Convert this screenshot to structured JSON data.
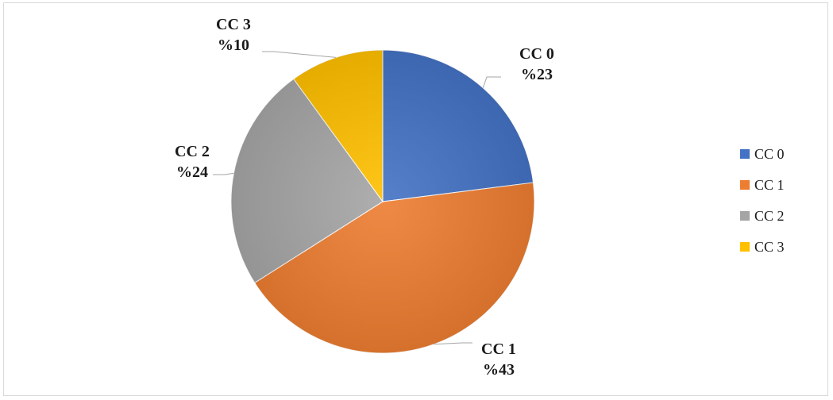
{
  "chart_data": {
    "type": "pie",
    "categories": [
      "CC 0",
      "CC 1",
      "CC 2",
      "CC 3"
    ],
    "values": [
      23,
      43,
      24,
      10
    ],
    "value_labels": [
      "%23",
      "%43",
      "%24",
      "%10"
    ],
    "colors": [
      "#4472c4",
      "#ed7d31",
      "#a5a5a5",
      "#ffc000"
    ],
    "legend": {
      "position": "right",
      "entries": [
        "CC 0",
        "CC 1",
        "CC 2",
        "CC 3"
      ]
    },
    "start": "12 o'clock",
    "direction": "clockwise"
  }
}
